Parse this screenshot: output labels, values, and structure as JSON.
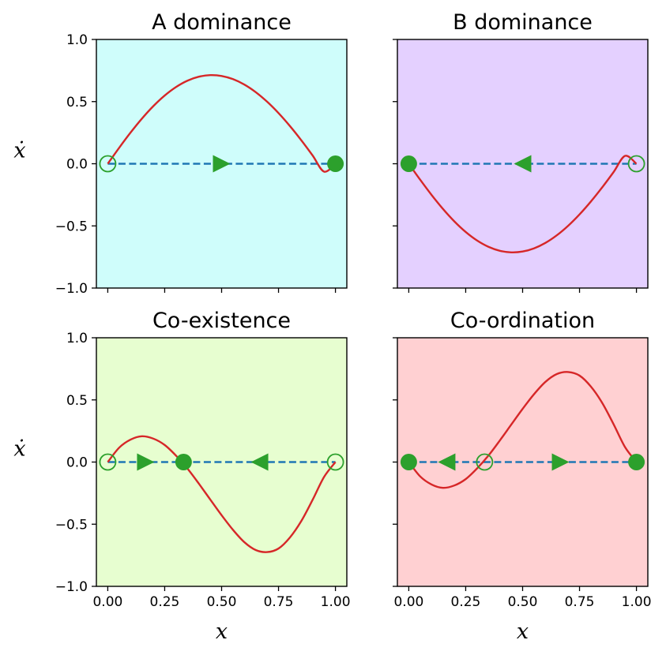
{
  "chart_data": [
    {
      "type": "line",
      "title": "A dominance",
      "background": "#cffdfb",
      "xlabel": "",
      "ylabel": "ẋ",
      "xlim": [
        -0.05,
        1.05
      ],
      "ylim": [
        -1.0,
        1.0
      ],
      "xticks": [
        0.0,
        0.25,
        0.5,
        0.75,
        1.0
      ],
      "xtick_labels": [
        "",
        "",
        "",
        "",
        ""
      ],
      "yticks": [
        1.0,
        0.5,
        0.0,
        -0.5,
        -1.0
      ],
      "ytick_labels": [
        "1.0",
        "0.5",
        "0.0",
        "−0.5",
        "−1.0"
      ],
      "series": [
        {
          "name": "x-dot",
          "color": "#d62728",
          "x": [
            0.0,
            0.05,
            0.1,
            0.15,
            0.2,
            0.25,
            0.3,
            0.35,
            0.4,
            0.45,
            0.5,
            0.55,
            0.6,
            0.65,
            0.7,
            0.75,
            0.8,
            0.85,
            0.9,
            0.95,
            1.0
          ],
          "values": [
            0.0,
            0.1283,
            0.2505,
            0.3632,
            0.4634,
            0.5488,
            0.6175,
            0.6683,
            0.7002,
            0.7129,
            0.7063,
            0.6807,
            0.6369,
            0.5758,
            0.4989,
            0.4075,
            0.3035,
            0.1889,
            0.0658,
            -0.0633,
            0.0
          ]
        }
      ],
      "fixed_points": [
        {
          "x": 0.0,
          "stable": false
        },
        {
          "x": 1.0,
          "stable": true
        }
      ],
      "arrows": [
        {
          "x": 0.5,
          "direction": "right"
        }
      ]
    },
    {
      "type": "line",
      "title": "B dominance",
      "background": "#e4d0ff",
      "xlabel": "",
      "ylabel": "",
      "xlim": [
        -0.05,
        1.05
      ],
      "ylim": [
        -1.0,
        1.0
      ],
      "xticks": [
        0.0,
        0.25,
        0.5,
        0.75,
        1.0
      ],
      "xtick_labels": [
        "",
        "",
        "",
        "",
        ""
      ],
      "yticks": [
        1.0,
        0.5,
        0.0,
        -0.5,
        -1.0
      ],
      "ytick_labels": [
        "",
        "",
        "",
        "",
        ""
      ],
      "series": [
        {
          "name": "x-dot",
          "color": "#d62728",
          "x": [
            0.0,
            0.05,
            0.1,
            0.15,
            0.2,
            0.25,
            0.3,
            0.35,
            0.4,
            0.45,
            0.5,
            0.55,
            0.6,
            0.65,
            0.7,
            0.75,
            0.8,
            0.85,
            0.9,
            0.95,
            1.0
          ],
          "values": [
            0.0,
            -0.1283,
            -0.2505,
            -0.3632,
            -0.4634,
            -0.5488,
            -0.6175,
            -0.6683,
            -0.7002,
            -0.7129,
            -0.7063,
            -0.6807,
            -0.6369,
            -0.5758,
            -0.4989,
            -0.4075,
            -0.3035,
            -0.1889,
            -0.0658,
            0.0633,
            0.0
          ]
        }
      ],
      "fixed_points": [
        {
          "x": 0.0,
          "stable": true
        },
        {
          "x": 1.0,
          "stable": false
        }
      ],
      "arrows": [
        {
          "x": 0.5,
          "direction": "left"
        }
      ]
    },
    {
      "type": "line",
      "title": "Co-existence",
      "background": "#e7fed0",
      "xlabel": "x",
      "ylabel": "ẋ",
      "xlim": [
        -0.05,
        1.05
      ],
      "ylim": [
        -1.0,
        1.0
      ],
      "xticks": [
        0.0,
        0.25,
        0.5,
        0.75,
        1.0
      ],
      "xtick_labels": [
        "0.00",
        "0.25",
        "0.50",
        "0.75",
        "1.00"
      ],
      "yticks": [
        1.0,
        0.5,
        0.0,
        -0.5,
        -1.0
      ],
      "ytick_labels": [
        "1.0",
        "0.5",
        "0.0",
        "−0.5",
        "−1.0"
      ],
      "series": [
        {
          "name": "x-dot",
          "color": "#d62728",
          "x": [
            0.0,
            0.05,
            0.1,
            0.15,
            0.2,
            0.25,
            0.3,
            0.35,
            0.4,
            0.45,
            0.5,
            0.55,
            0.6,
            0.65,
            0.7,
            0.75,
            0.8,
            0.85,
            0.9,
            0.95,
            1.0
          ],
          "values": [
            0.0,
            0.1155,
            0.1803,
            0.2075,
            0.1885,
            0.1372,
            0.0512,
            -0.0524,
            -0.1736,
            -0.3011,
            -0.4278,
            -0.5455,
            -0.6447,
            -0.7078,
            -0.7244,
            -0.6957,
            -0.6071,
            -0.4748,
            -0.3029,
            -0.1197,
            0.0
          ]
        }
      ],
      "fixed_points": [
        {
          "x": 0.0,
          "stable": false
        },
        {
          "x": 0.333,
          "stable": true
        },
        {
          "x": 1.0,
          "stable": false
        }
      ],
      "arrows": [
        {
          "x": 0.1667,
          "direction": "right"
        },
        {
          "x": 0.6667,
          "direction": "left"
        }
      ]
    },
    {
      "type": "line",
      "title": "Co-ordination",
      "background": "#ffd0d2",
      "xlabel": "x",
      "ylabel": "",
      "xlim": [
        -0.05,
        1.05
      ],
      "ylim": [
        -1.0,
        1.0
      ],
      "xticks": [
        0.0,
        0.25,
        0.5,
        0.75,
        1.0
      ],
      "xtick_labels": [
        "0.00",
        "0.25",
        "0.50",
        "0.75",
        "1.00"
      ],
      "yticks": [
        1.0,
        0.5,
        0.0,
        -0.5,
        -1.0
      ],
      "ytick_labels": [
        "",
        "",
        "",
        "",
        ""
      ],
      "series": [
        {
          "name": "x-dot",
          "color": "#d62728",
          "x": [
            0.0,
            0.05,
            0.1,
            0.15,
            0.2,
            0.25,
            0.3,
            0.35,
            0.4,
            0.45,
            0.5,
            0.55,
            0.6,
            0.65,
            0.7,
            0.75,
            0.8,
            0.85,
            0.9,
            0.95,
            1.0
          ],
          "values": [
            0.0,
            -0.1155,
            -0.1803,
            -0.2075,
            -0.1885,
            -0.1372,
            -0.0512,
            0.0524,
            0.1736,
            0.3011,
            0.4278,
            0.5455,
            0.6447,
            0.7078,
            0.7244,
            0.6957,
            0.6071,
            0.4748,
            0.3029,
            0.1197,
            0.0
          ]
        }
      ],
      "fixed_points": [
        {
          "x": 0.0,
          "stable": true
        },
        {
          "x": 0.333,
          "stable": false
        },
        {
          "x": 1.0,
          "stable": true
        }
      ],
      "arrows": [
        {
          "x": 0.1667,
          "direction": "left"
        },
        {
          "x": 0.6667,
          "direction": "right"
        }
      ]
    }
  ],
  "colors": {
    "curve": "#d62728",
    "baseline": "#1f77b4",
    "markers": "#2ca02c"
  }
}
